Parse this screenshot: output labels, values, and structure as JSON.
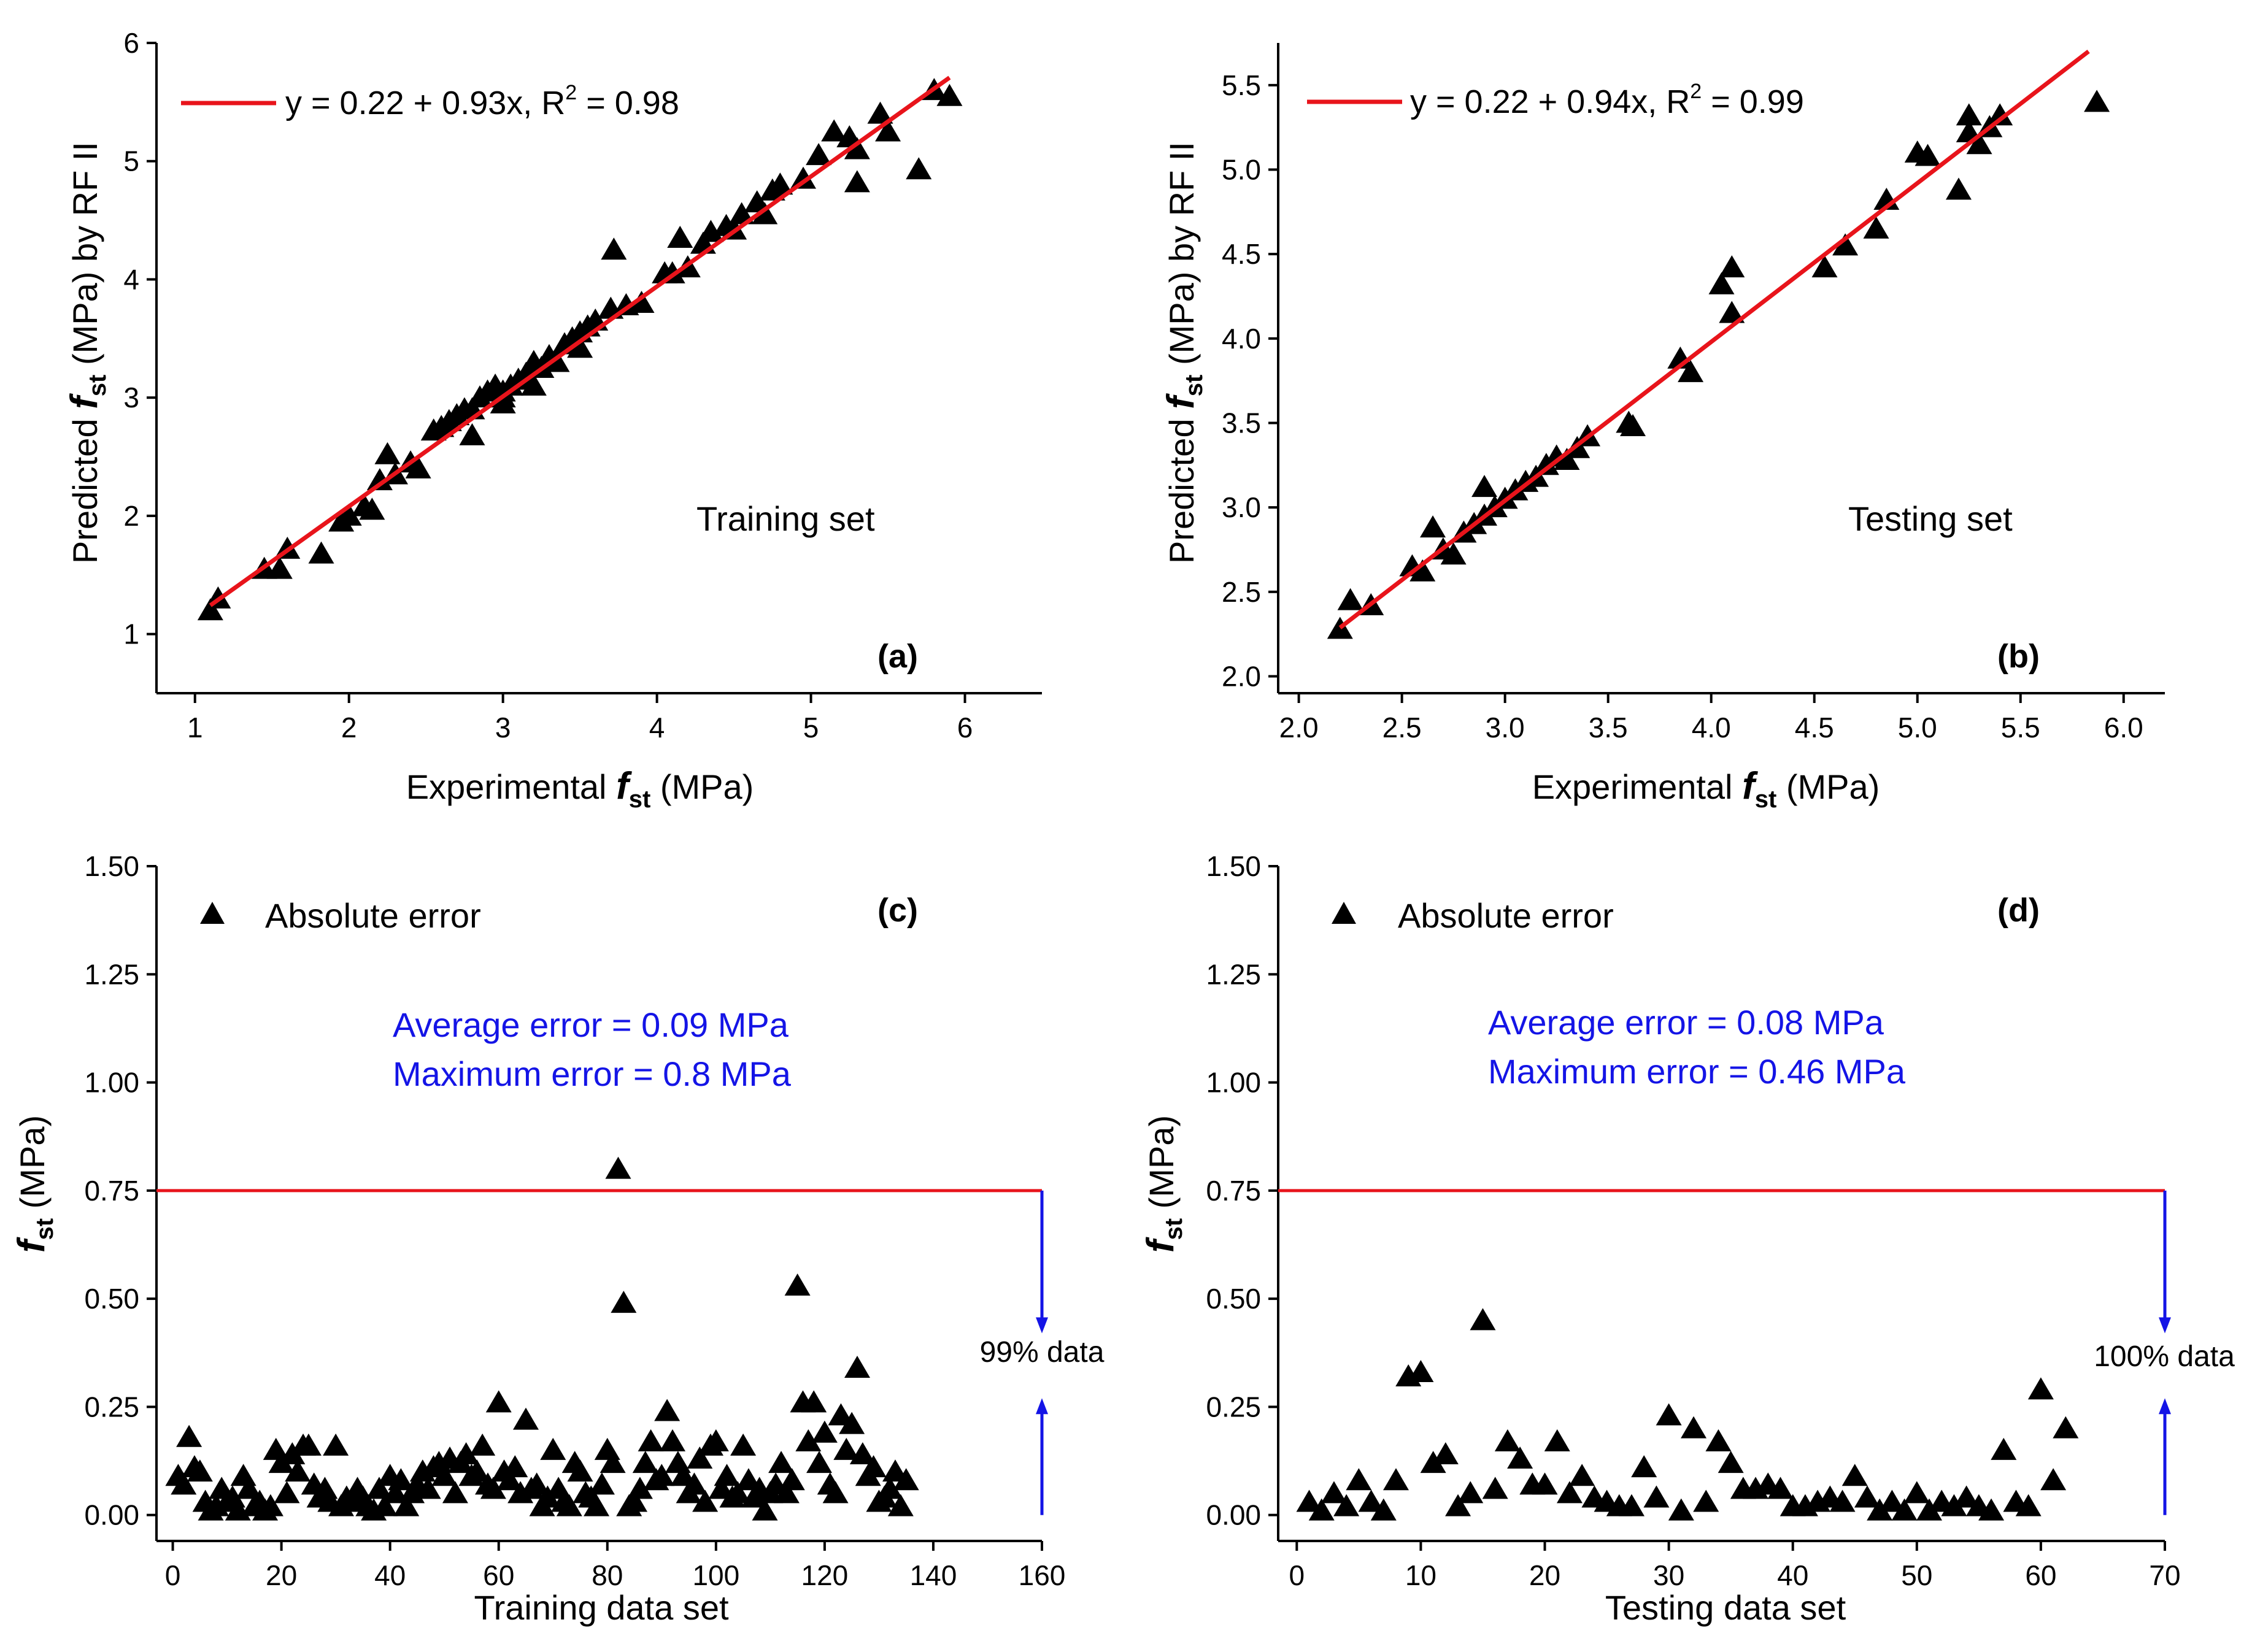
{
  "figure": {
    "panels": [
      {
        "id": "a",
        "xlabel_main": "Experimental ",
        "xlabel_var": "f",
        "xlabel_sub": "st",
        "xlabel_unit": " (MPa)",
        "ylabel_main": "Predicted ",
        "ylabel_var": "f",
        "ylabel_sub": "st",
        "ylabel_unit": " (MPa) by RF II",
        "legend_text": "y = 0.22 + 0.93x, R",
        "legend_sup": "2",
        "legend_tail": " = 0.98",
        "annotation": "Training set",
        "panel_label": "(a)"
      },
      {
        "id": "b",
        "xlabel_main": "Experimental ",
        "xlabel_var": "f",
        "xlabel_sub": "st",
        "xlabel_unit": " (MPa)",
        "ylabel_main": "Predicted ",
        "ylabel_var": "f",
        "ylabel_sub": "st",
        "ylabel_unit": " (MPa) by RF II",
        "legend_text": "y = 0.22 + 0.94x, R",
        "legend_sup": "2",
        "legend_tail": " = 0.99",
        "annotation": "Testing set",
        "panel_label": "(b)"
      },
      {
        "id": "c",
        "xlabel": "Training data set",
        "ylabel_var": "f",
        "ylabel_sub": "st",
        "ylabel_unit": " (MPa)",
        "legend_text": "Absolute error",
        "avg_text": "Average error = 0.09 MPa",
        "max_text": "Maximum error = 0.8 MPa",
        "pct_text": "99% data",
        "panel_label": "(c)"
      },
      {
        "id": "d",
        "xlabel": "Testing data set",
        "ylabel_var": "f",
        "ylabel_sub": "st",
        "ylabel_unit": " (MPa)",
        "legend_text": "Absolute error",
        "avg_text": "Average error = 0.08 MPa",
        "max_text": "Maximum error = 0.46 MPa",
        "pct_text": "100% data",
        "panel_label": "(d)"
      }
    ]
  },
  "colors": {
    "fit_line": "#e8141b",
    "threshold_line": "#e8141b",
    "annotation_text": "#1414e6",
    "arrow": "#1414e6",
    "marker": "#000000"
  },
  "chart_data": [
    {
      "type": "scatter",
      "panel": "a",
      "xlim": [
        0.75,
        6.5
      ],
      "ylim": [
        0.5,
        6
      ],
      "xticks": [
        1,
        2,
        3,
        4,
        5,
        6
      ],
      "yticks": [
        1,
        2,
        3,
        4,
        5,
        6
      ],
      "fit": {
        "intercept": 0.22,
        "slope": 0.93,
        "r2": 0.98,
        "x_range": [
          1.1,
          5.9
        ]
      },
      "points": [
        [
          1.1,
          1.2
        ],
        [
          1.15,
          1.3
        ],
        [
          1.45,
          1.55
        ],
        [
          1.55,
          1.55
        ],
        [
          1.6,
          1.72
        ],
        [
          1.82,
          1.68
        ],
        [
          1.95,
          1.95
        ],
        [
          2.0,
          2.0
        ],
        [
          2.1,
          2.08
        ],
        [
          2.2,
          2.3
        ],
        [
          2.25,
          2.52
        ],
        [
          2.3,
          2.35
        ],
        [
          2.4,
          2.45
        ],
        [
          2.55,
          2.72
        ],
        [
          2.6,
          2.75
        ],
        [
          2.65,
          2.8
        ],
        [
          2.7,
          2.85
        ],
        [
          2.75,
          2.9
        ],
        [
          2.8,
          2.9
        ],
        [
          2.85,
          3.0
        ],
        [
          2.9,
          3.05
        ],
        [
          2.95,
          3.1
        ],
        [
          3.0,
          3.05
        ],
        [
          3.0,
          3.0
        ],
        [
          3.05,
          3.1
        ],
        [
          3.1,
          3.15
        ],
        [
          3.15,
          3.2
        ],
        [
          3.2,
          3.3
        ],
        [
          3.25,
          3.25
        ],
        [
          3.3,
          3.35
        ],
        [
          3.35,
          3.3
        ],
        [
          3.4,
          3.45
        ],
        [
          3.45,
          3.5
        ],
        [
          3.5,
          3.55
        ],
        [
          3.55,
          3.6
        ],
        [
          3.6,
          3.65
        ],
        [
          3.7,
          3.75
        ],
        [
          3.72,
          4.25
        ],
        [
          3.8,
          3.78
        ],
        [
          3.9,
          3.8
        ],
        [
          4.05,
          4.05
        ],
        [
          4.15,
          4.35
        ],
        [
          4.2,
          4.1
        ],
        [
          4.3,
          4.3
        ],
        [
          4.35,
          4.4
        ],
        [
          4.45,
          4.45
        ],
        [
          4.5,
          4.42
        ],
        [
          4.65,
          4.65
        ],
        [
          4.75,
          4.75
        ],
        [
          4.8,
          4.8
        ],
        [
          4.95,
          4.85
        ],
        [
          5.05,
          5.05
        ],
        [
          5.15,
          5.25
        ],
        [
          5.25,
          5.2
        ],
        [
          5.3,
          5.1
        ],
        [
          5.3,
          4.82
        ],
        [
          5.45,
          5.4
        ],
        [
          5.5,
          5.25
        ],
        [
          5.7,
          4.93
        ],
        [
          5.8,
          5.6
        ],
        [
          5.9,
          5.55
        ],
        [
          3.0,
          2.95
        ],
        [
          2.8,
          2.68
        ],
        [
          3.2,
          3.1
        ],
        [
          3.5,
          3.42
        ],
        [
          4.1,
          4.05
        ],
        [
          4.55,
          4.55
        ],
        [
          4.7,
          4.55
        ],
        [
          2.45,
          2.4
        ],
        [
          2.15,
          2.05
        ]
      ]
    },
    {
      "type": "scatter",
      "panel": "b",
      "xlim": [
        1.9,
        6.2
      ],
      "ylim": [
        1.9,
        5.75
      ],
      "xticks": [
        2.0,
        2.5,
        3.0,
        3.5,
        4.0,
        4.5,
        5.0,
        5.5,
        6.0
      ],
      "yticks": [
        2.0,
        2.5,
        3.0,
        3.5,
        4.0,
        4.5,
        5.0,
        5.5
      ],
      "fit": {
        "intercept": 0.22,
        "slope": 0.94,
        "r2": 0.99,
        "x_range": [
          2.2,
          5.83
        ]
      },
      "points": [
        [
          2.2,
          2.28
        ],
        [
          2.25,
          2.45
        ],
        [
          2.35,
          2.42
        ],
        [
          2.55,
          2.65
        ],
        [
          2.6,
          2.62
        ],
        [
          2.65,
          2.88
        ],
        [
          2.7,
          2.75
        ],
        [
          2.75,
          2.72
        ],
        [
          2.8,
          2.85
        ],
        [
          2.85,
          2.9
        ],
        [
          2.9,
          2.95
        ],
        [
          2.9,
          3.12
        ],
        [
          2.95,
          3.0
        ],
        [
          3.0,
          3.05
        ],
        [
          3.05,
          3.1
        ],
        [
          3.1,
          3.15
        ],
        [
          3.15,
          3.18
        ],
        [
          3.2,
          3.25
        ],
        [
          3.25,
          3.3
        ],
        [
          3.3,
          3.28
        ],
        [
          3.35,
          3.35
        ],
        [
          3.4,
          3.42
        ],
        [
          3.6,
          3.5
        ],
        [
          3.62,
          3.48
        ],
        [
          3.85,
          3.88
        ],
        [
          3.9,
          3.8
        ],
        [
          4.05,
          4.32
        ],
        [
          4.1,
          4.42
        ],
        [
          4.1,
          4.15
        ],
        [
          4.55,
          4.42
        ],
        [
          4.65,
          4.55
        ],
        [
          4.8,
          4.65
        ],
        [
          4.85,
          4.82
        ],
        [
          5.0,
          5.1
        ],
        [
          5.05,
          5.08
        ],
        [
          5.2,
          4.88
        ],
        [
          5.25,
          5.32
        ],
        [
          5.25,
          5.22
        ],
        [
          5.3,
          5.15
        ],
        [
          5.35,
          5.25
        ],
        [
          5.4,
          5.32
        ],
        [
          5.87,
          5.4
        ]
      ]
    },
    {
      "type": "scatter",
      "panel": "c",
      "xlim": [
        -3,
        160
      ],
      "ylim": [
        -0.06,
        1.5
      ],
      "xticks": [
        0,
        20,
        40,
        60,
        80,
        100,
        120,
        140,
        160
      ],
      "yticks": [
        0.0,
        0.25,
        0.5,
        0.75,
        1.0,
        1.25,
        1.5
      ],
      "ytick_labels": [
        "0.00",
        "0.25",
        "0.50",
        "0.75",
        "1.00",
        "1.25",
        "1.50"
      ],
      "threshold": 0.75,
      "average_error": 0.09,
      "maximum_error": 0.8,
      "data_within_pct": 99,
      "values": [
        0.09,
        0.07,
        0.18,
        0.11,
        0.1,
        0.03,
        0.01,
        0.02,
        0.06,
        0.03,
        0.04,
        0.01,
        0.09,
        0.06,
        0.02,
        0.03,
        0.01,
        0.02,
        0.15,
        0.12,
        0.05,
        0.14,
        0.1,
        0.16,
        0.16,
        0.07,
        0.04,
        0.06,
        0.03,
        0.16,
        0.02,
        0.04,
        0.03,
        0.06,
        0.04,
        0.02,
        0.01,
        0.06,
        0.02,
        0.09,
        0.05,
        0.08,
        0.02,
        0.05,
        0.07,
        0.1,
        0.06,
        0.11,
        0.12,
        0.09,
        0.13,
        0.05,
        0.12,
        0.14,
        0.09,
        0.1,
        0.16,
        0.07,
        0.06,
        0.26,
        0.1,
        0.08,
        0.11,
        0.05,
        0.22,
        0.06,
        0.07,
        0.02,
        0.04,
        0.15,
        0.06,
        0.03,
        0.02,
        0.12,
        0.1,
        0.05,
        0.04,
        0.02,
        0.07,
        0.15,
        0.12,
        0.8,
        0.49,
        0.02,
        0.03,
        0.06,
        0.12,
        0.17,
        0.08,
        0.09,
        0.24,
        0.17,
        0.12,
        0.09,
        0.05,
        0.07,
        0.13,
        0.03,
        0.16,
        0.17,
        0.06,
        0.09,
        0.04,
        0.05,
        0.16,
        0.08,
        0.04,
        0.06,
        0.01,
        0.05,
        0.07,
        0.12,
        0.05,
        0.08,
        0.53,
        0.26,
        0.17,
        0.26,
        0.12,
        0.19,
        0.07,
        0.05,
        0.23,
        0.15,
        0.21,
        0.34,
        0.14,
        0.09,
        0.11,
        0.03,
        0.04,
        0.06,
        0.1,
        0.02,
        0.08
      ]
    },
    {
      "type": "scatter",
      "panel": "d",
      "xlim": [
        -1.5,
        70
      ],
      "ylim": [
        -0.06,
        1.5
      ],
      "xticks": [
        0,
        10,
        20,
        30,
        40,
        50,
        60,
        70
      ],
      "yticks": [
        0.0,
        0.25,
        0.5,
        0.75,
        1.0,
        1.25,
        1.5
      ],
      "ytick_labels": [
        "0.00",
        "0.25",
        "0.50",
        "0.75",
        "1.00",
        "1.25",
        "1.50"
      ],
      "threshold": 0.75,
      "average_error": 0.08,
      "maximum_error": 0.46,
      "data_within_pct": 100,
      "values": [
        0.03,
        0.01,
        0.05,
        0.02,
        0.08,
        0.03,
        0.01,
        0.08,
        0.32,
        0.33,
        0.12,
        0.14,
        0.02,
        0.05,
        0.45,
        0.06,
        0.17,
        0.13,
        0.07,
        0.07,
        0.17,
        0.05,
        0.09,
        0.04,
        0.03,
        0.02,
        0.02,
        0.11,
        0.04,
        0.23,
        0.01,
        0.2,
        0.03,
        0.17,
        0.12,
        0.06,
        0.06,
        0.07,
        0.06,
        0.02,
        0.02,
        0.03,
        0.04,
        0.03,
        0.09,
        0.04,
        0.01,
        0.03,
        0.01,
        0.05,
        0.01,
        0.03,
        0.02,
        0.04,
        0.02,
        0.01,
        0.15,
        0.03,
        0.02,
        0.29,
        0.08,
        0.2
      ]
    }
  ]
}
